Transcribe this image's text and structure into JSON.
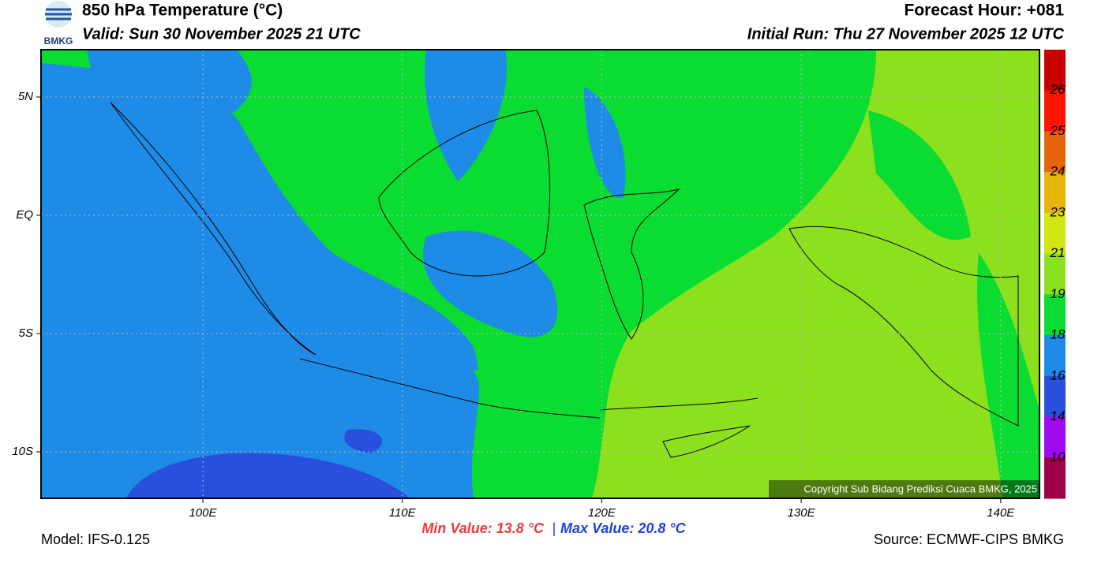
{
  "header": {
    "logo": "BMKG",
    "title": "850 hPa Temperature (°C)",
    "valid": "Valid: Sun 30 November 2025 21 UTC",
    "forecast_hour": "Forecast Hour: +081",
    "initial_run": "Initial Run: Thu 27 November 2025 12 UTC"
  },
  "map": {
    "lat_labels": [
      "5N",
      "EQ",
      "5S",
      "10S"
    ],
    "lon_labels": [
      "100E",
      "110E",
      "120E",
      "130E",
      "140E"
    ],
    "copyright": "Copyright Sub Bidang Prediksi Cuaca BMKG, 2025"
  },
  "colorbar": {
    "labels": [
      "26",
      "25",
      "24",
      "23",
      "21",
      "19",
      "18",
      "16",
      "14",
      "10"
    ],
    "colors": [
      "#c80000",
      "#ff1400",
      "#e8640a",
      "#e6b40a",
      "#d2e614",
      "#8ce01e",
      "#0adc32",
      "#1e8ce6",
      "#2850dc",
      "#a00af0",
      "#a0004a"
    ]
  },
  "footer": {
    "model": "Model: IFS-0.125",
    "min": "Min Value: 13.8 °C",
    "separator": "|",
    "max": "Max Value: 20.8 °C",
    "source": "Source: ECMWF-CIPS BMKG"
  }
}
